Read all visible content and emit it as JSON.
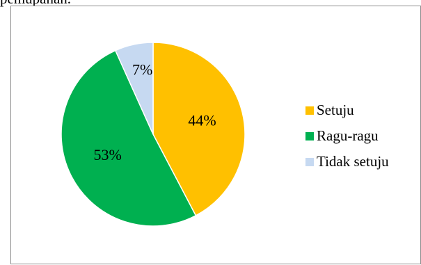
{
  "page": {
    "header_fragment": "pemupanan."
  },
  "chart_data": {
    "type": "pie",
    "title": "",
    "categories": [
      "Setuju",
      "Ragu-ragu",
      "Tidak setuju"
    ],
    "values": [
      44,
      53,
      7
    ],
    "data_labels": [
      "44%",
      "53%",
      "7%"
    ],
    "colors": [
      "#FFC000",
      "#00B050",
      "#C6D9F1"
    ],
    "legend_position": "right"
  }
}
